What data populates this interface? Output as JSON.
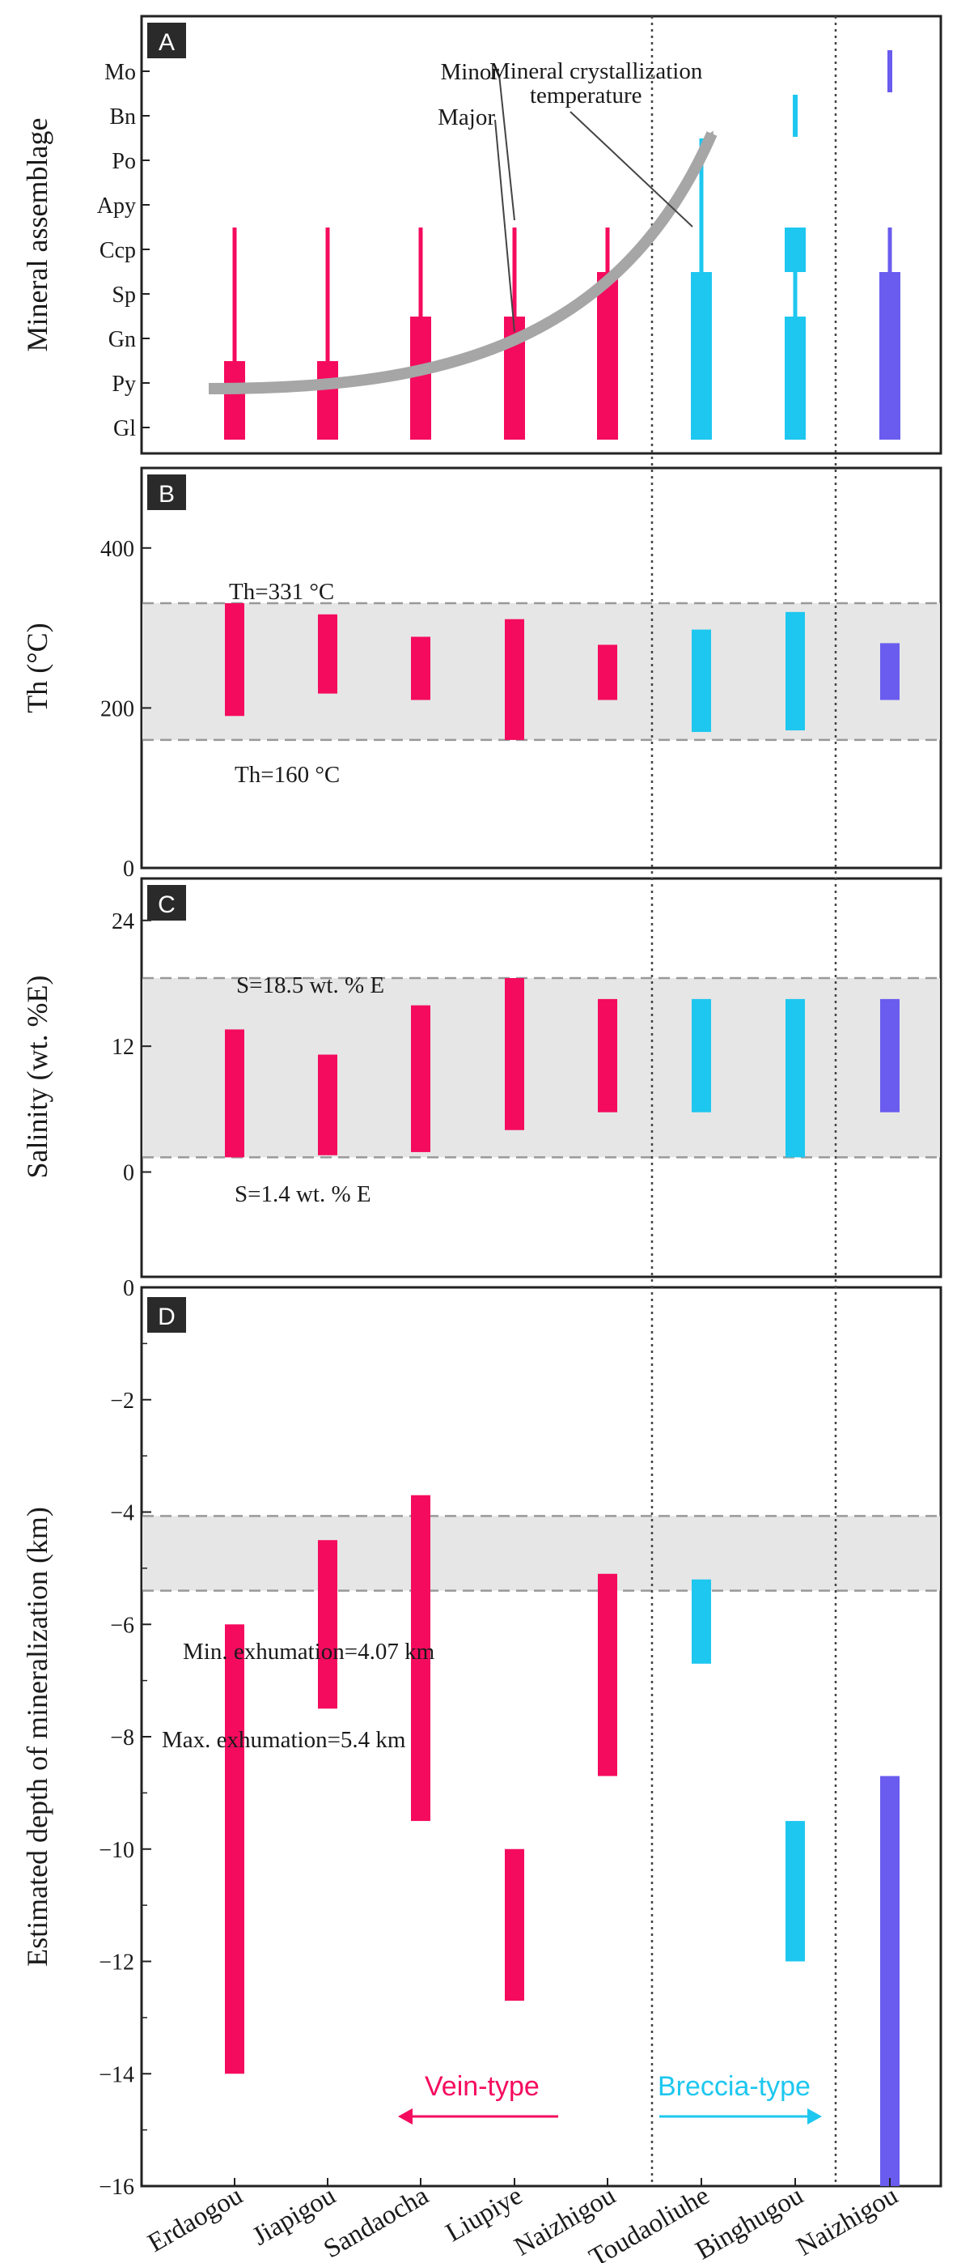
{
  "colors": {
    "vein": "#f50b5e",
    "breccia": "#1ec7ef",
    "other": "#6a5cef",
    "band": "#e6e6e6",
    "arrow": "#a6a6a6"
  },
  "chart_data": [
    {
      "type": "range-bar",
      "panel": "A",
      "ylabel": "Mineral assemblage",
      "minerals": [
        "Gl",
        "Py",
        "Gn",
        "Sp",
        "Ccp",
        "Apy",
        "Po",
        "Bn",
        "Mo"
      ],
      "categories": [
        "Erdaogou",
        "Jiapigou",
        "Sandaocha",
        "Liupiye",
        "Naizhigou",
        "Toudaoliuhe",
        "Binghugou",
        "Naizhigou"
      ],
      "major": [
        [
          "Gl",
          "Py"
        ],
        [
          "Gl",
          "Py"
        ],
        [
          "Gl",
          "Gn"
        ],
        [
          "Gl",
          "Gn"
        ],
        [
          "Gl",
          "Sp"
        ],
        [
          "Gl",
          "Sp"
        ],
        [
          "Gl",
          "Gn"
        ],
        [
          "Gl",
          "Sp"
        ]
      ],
      "minor": [
        [
          "Py",
          "Ccp"
        ],
        [
          "Py",
          "Ccp"
        ],
        [
          "Gn",
          "Ccp"
        ],
        [
          "Gn",
          "Ccp"
        ],
        [
          "Sp",
          "Ccp"
        ],
        [
          "Sp",
          "Po"
        ],
        [
          "Gn",
          "Sp"
        ],
        [
          "Sp",
          "Ccp"
        ]
      ],
      "extra_minor": [
        null,
        null,
        null,
        null,
        null,
        null,
        [
          "Bn",
          "Bn"
        ],
        [
          "Mo",
          "Mo"
        ]
      ],
      "extra_major": [
        null,
        null,
        null,
        null,
        null,
        null,
        [
          "Sp",
          "Ccp"
        ],
        null
      ],
      "annotations": {
        "minor_label": "Minor",
        "major_label": "Major",
        "temp_label_1": "Mineral crystallization",
        "temp_label_2": "temperature"
      }
    },
    {
      "type": "range-bar",
      "panel": "B",
      "ylabel": "Th (°C)",
      "ylim": [
        0,
        500
      ],
      "yticks": [
        0,
        200,
        400
      ],
      "ranges": [
        [
          190,
          331
        ],
        [
          218,
          317
        ],
        [
          210,
          289
        ],
        [
          160,
          311
        ],
        [
          210,
          279
        ],
        [
          170,
          298
        ],
        [
          172,
          320
        ],
        [
          210,
          281
        ]
      ],
      "band": [
        160,
        331
      ],
      "band_labels": [
        "Th=331 °C",
        "Th=160 °C"
      ]
    },
    {
      "type": "range-bar",
      "panel": "C",
      "ylabel": "Salinity (wt. %E)",
      "ylim": [
        -10,
        28
      ],
      "yticks": [
        0,
        12,
        24
      ],
      "ranges": [
        [
          1.4,
          13.6
        ],
        [
          1.6,
          11.2
        ],
        [
          1.9,
          15.9
        ],
        [
          4.0,
          18.5
        ],
        [
          5.7,
          16.5
        ],
        [
          5.7,
          16.5
        ],
        [
          1.4,
          16.5
        ],
        [
          5.7,
          16.5
        ]
      ],
      "band": [
        1.4,
        18.5
      ],
      "band_labels": [
        "S=18.5 wt. % E",
        "S=1.4 wt. % E"
      ]
    },
    {
      "type": "range-bar",
      "panel": "D",
      "ylabel": "Estimated depth of mineralization (km)",
      "ylim": [
        -16,
        0
      ],
      "yticks": [
        0,
        -2,
        -4,
        -6,
        -8,
        -10,
        -12,
        -14,
        -16
      ],
      "ranges": [
        [
          -14.0,
          -6.0
        ],
        [
          -7.5,
          -4.5
        ],
        [
          -9.5,
          -3.7
        ],
        [
          -12.7,
          -10.0
        ],
        [
          -8.7,
          -5.1
        ],
        [
          -6.7,
          -5.2
        ],
        [
          -12.0,
          -9.5
        ],
        [
          -16.0,
          -8.7
        ]
      ],
      "band": [
        -5.4,
        -4.07
      ],
      "band_labels": [
        "Min. exhumation=4.07 km",
        "Max. exhumation=5.4 km"
      ],
      "type_labels": [
        "Vein-type",
        "Breccia-type"
      ]
    }
  ],
  "panel_letters": [
    "A",
    "B",
    "C",
    "D"
  ],
  "xlabels": [
    "Erdaogou",
    "Jiapigou",
    "Sandaocha",
    "Liupiye",
    "Naizhigou",
    "Toudaoliuhe",
    "Binghugou",
    "Naizhigou"
  ],
  "bar_colors": [
    "vein",
    "vein",
    "vein",
    "vein",
    "vein",
    "breccia",
    "breccia",
    "other"
  ]
}
